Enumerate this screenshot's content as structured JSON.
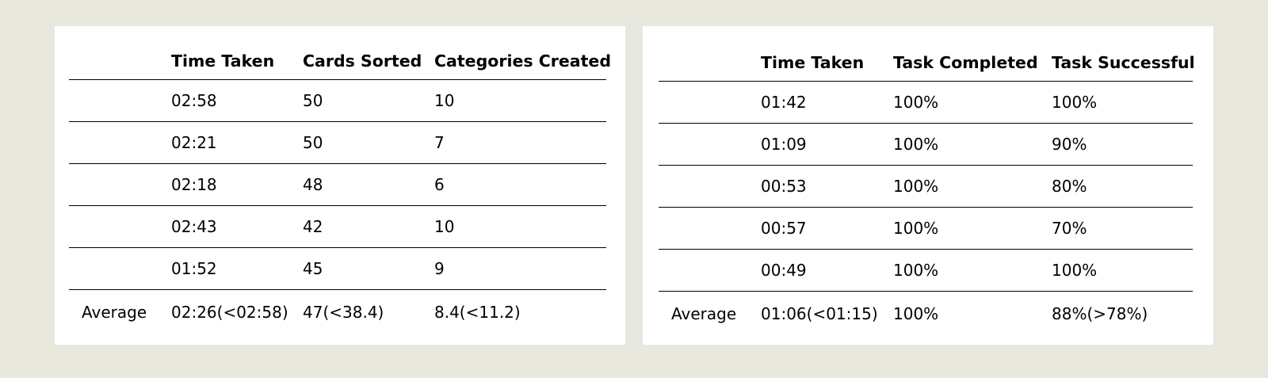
{
  "left_table": {
    "headers": [
      "",
      "Time Taken",
      "Cards Sorted",
      "Categories Created"
    ],
    "rows": [
      [
        "",
        "02:58",
        "50",
        "10"
      ],
      [
        "",
        "02:21",
        "50",
        "7"
      ],
      [
        "",
        "02:18",
        "48",
        "6"
      ],
      [
        "",
        "02:43",
        "42",
        "10"
      ],
      [
        "",
        "01:52",
        "45",
        "9"
      ]
    ],
    "average": [
      "Average",
      "02:26(<02:58)",
      "47(<38.4)",
      "8.4(<11.2)"
    ]
  },
  "right_table": {
    "headers": [
      "",
      "Time Taken",
      "Task Completed",
      "Task Successful"
    ],
    "rows": [
      [
        "",
        "01:42",
        "100%",
        "100%"
      ],
      [
        "",
        "01:09",
        "100%",
        "90%"
      ],
      [
        "",
        "00:53",
        "100%",
        "80%"
      ],
      [
        "",
        "00:57",
        "100%",
        "70%"
      ],
      [
        "",
        "00:49",
        "100%",
        "100%"
      ]
    ],
    "average": [
      "Average",
      "01:06(<01:15)",
      "100%",
      "88%(>78%)"
    ]
  }
}
